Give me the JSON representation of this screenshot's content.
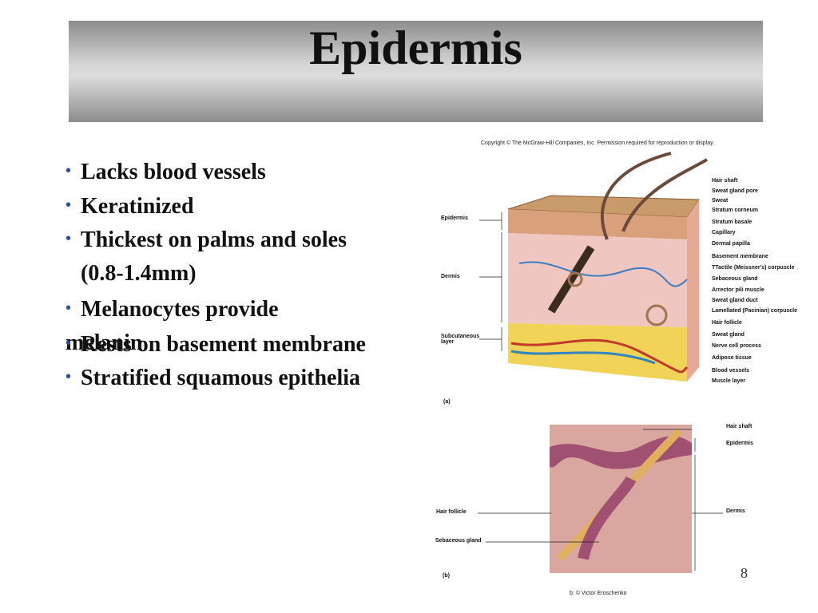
{
  "header": {
    "title": "Epidermis"
  },
  "bullets": [
    "Lacks blood vessels",
    "Keratinized",
    "Thickest on palms and soles (0.8-1.4mm)",
    "Melanocytes provide melanin",
    "Rests on basement membrane",
    "Stratified squamous epithelia"
  ],
  "figure_a": {
    "copyright": "Copyright © The McGraw-Hill Companies, Inc. Permission required for reproduction or display.",
    "left_labels": [
      "Epidermis",
      "Dermis",
      "Subcutaneous layer"
    ],
    "right_labels": [
      "Hair shaft",
      "Sweat gland pore",
      "Sweat",
      "Stratum corneum",
      "Stratum basale",
      "Capillary",
      "Dermal papilla",
      "Basement membrane",
      "TTactile (Meissner's) corpuscle",
      "Sebaceous gland",
      "Arrector pili muscle",
      "Sweat gland duct",
      "Lamellated (Pacinian) corpuscle",
      "Hair follicle",
      "Sweat gland",
      "Nerve cell process",
      "Adipose tissue",
      "Blood vessels",
      "Muscle layer"
    ],
    "panel": "(a)"
  },
  "figure_b": {
    "right_labels": [
      "Hair shaft",
      "Epidermis",
      "Dermis"
    ],
    "left_labels": [
      "Hair follicle",
      "Sebaceous gland"
    ],
    "panel": "(b)",
    "credit": "b: © Victor Eroschenko"
  },
  "page_number": "8"
}
